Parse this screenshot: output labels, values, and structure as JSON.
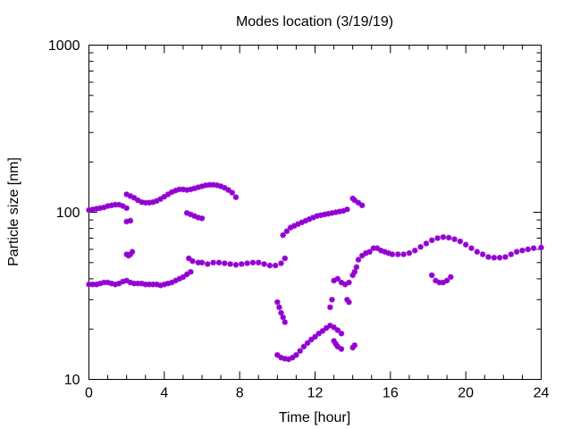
{
  "chart_data": {
    "type": "scatter",
    "title": "Modes location (3/19/19)",
    "xlabel": "Time [hour]",
    "ylabel": "Particle size [nm]",
    "xlim": [
      0,
      24
    ],
    "ylim": [
      10,
      1000
    ],
    "yscale": "log",
    "x_ticks": [
      0,
      4,
      8,
      12,
      16,
      20,
      24
    ],
    "x_tick_labels": [
      "0",
      "4",
      "8",
      "12",
      "16",
      "20",
      "24"
    ],
    "y_ticks": [
      10,
      100,
      1000
    ],
    "y_tick_labels": [
      "10",
      "100",
      "1000"
    ],
    "grid": false,
    "legend": false,
    "marker_color": "#9400d3",
    "series": [
      {
        "points": [
          [
            0.0,
            103
          ],
          [
            0.2,
            104
          ],
          [
            0.4,
            105
          ],
          [
            0.6,
            106
          ],
          [
            0.8,
            107
          ],
          [
            1.0,
            109
          ],
          [
            1.2,
            110
          ],
          [
            1.4,
            111
          ],
          [
            1.6,
            111
          ],
          [
            1.8,
            109
          ],
          [
            2.0,
            106
          ],
          [
            2.0,
            128
          ],
          [
            2.2,
            125
          ],
          [
            2.4,
            122
          ],
          [
            2.6,
            118
          ],
          [
            2.8,
            115
          ],
          [
            3.0,
            114
          ],
          [
            3.2,
            114
          ],
          [
            3.4,
            115
          ],
          [
            3.6,
            117
          ],
          [
            3.8,
            120
          ],
          [
            4.0,
            124
          ],
          [
            4.2,
            128
          ],
          [
            4.4,
            132
          ],
          [
            4.6,
            135
          ],
          [
            4.8,
            137
          ],
          [
            5.0,
            137
          ],
          [
            5.2,
            136
          ],
          [
            5.4,
            137
          ],
          [
            5.6,
            139
          ],
          [
            5.8,
            141
          ],
          [
            6.0,
            143
          ],
          [
            6.2,
            145
          ],
          [
            6.4,
            146
          ],
          [
            6.6,
            146
          ],
          [
            6.8,
            145
          ],
          [
            7.0,
            143
          ],
          [
            7.2,
            140
          ],
          [
            7.4,
            136
          ],
          [
            7.6,
            131
          ],
          [
            7.8,
            123
          ],
          [
            2.0,
            88
          ],
          [
            2.2,
            89
          ],
          [
            2.0,
            56
          ],
          [
            2.1,
            55
          ],
          [
            2.2,
            56
          ],
          [
            2.3,
            58
          ],
          [
            5.2,
            99
          ],
          [
            5.4,
            97
          ],
          [
            5.6,
            95
          ],
          [
            5.8,
            93
          ],
          [
            6.0,
            92
          ],
          [
            0.0,
            37
          ],
          [
            0.2,
            37
          ],
          [
            0.4,
            37
          ],
          [
            0.6,
            37.5
          ],
          [
            0.8,
            38
          ],
          [
            1.0,
            38
          ],
          [
            1.2,
            37.5
          ],
          [
            1.4,
            37
          ],
          [
            1.6,
            37.5
          ],
          [
            1.8,
            38.5
          ],
          [
            2.0,
            39
          ],
          [
            2.2,
            38
          ],
          [
            2.4,
            37.5
          ],
          [
            2.6,
            37.5
          ],
          [
            2.8,
            37.5
          ],
          [
            3.0,
            37
          ],
          [
            3.2,
            37
          ],
          [
            3.4,
            37
          ],
          [
            3.6,
            37
          ],
          [
            3.8,
            36.5
          ],
          [
            4.0,
            37
          ],
          [
            4.2,
            37.5
          ],
          [
            4.4,
            38
          ],
          [
            4.6,
            39
          ],
          [
            4.8,
            40
          ],
          [
            5.0,
            41
          ],
          [
            5.2,
            42.5
          ],
          [
            5.4,
            44
          ],
          [
            5.3,
            53
          ],
          [
            5.5,
            51
          ],
          [
            5.8,
            50
          ],
          [
            6.0,
            50
          ],
          [
            6.3,
            49
          ],
          [
            6.6,
            50
          ],
          [
            6.9,
            50
          ],
          [
            7.2,
            49.5
          ],
          [
            7.5,
            49
          ],
          [
            7.8,
            48.5
          ],
          [
            8.1,
            49
          ],
          [
            8.4,
            49.5
          ],
          [
            8.7,
            50
          ],
          [
            9.0,
            50
          ],
          [
            9.3,
            49
          ],
          [
            9.6,
            48
          ],
          [
            9.9,
            48
          ],
          [
            10.2,
            49.5
          ],
          [
            10.4,
            53
          ],
          [
            10.0,
            29
          ],
          [
            10.1,
            27
          ],
          [
            10.2,
            25
          ],
          [
            10.3,
            23.5
          ],
          [
            10.4,
            22
          ],
          [
            10.0,
            14
          ],
          [
            10.2,
            13.5
          ],
          [
            10.4,
            13.3
          ],
          [
            10.6,
            13.2
          ],
          [
            10.8,
            13.5
          ],
          [
            11.0,
            14
          ],
          [
            11.2,
            14.8
          ],
          [
            11.4,
            15.7
          ],
          [
            11.6,
            16.5
          ],
          [
            11.8,
            17.3
          ],
          [
            12.0,
            18
          ],
          [
            12.2,
            18.8
          ],
          [
            12.4,
            19.5
          ],
          [
            12.6,
            20.3
          ],
          [
            12.8,
            21
          ],
          [
            13.0,
            20.5
          ],
          [
            13.2,
            19.7
          ],
          [
            13.4,
            18.8
          ],
          [
            13.0,
            17
          ],
          [
            13.1,
            16.3
          ],
          [
            13.2,
            15.7
          ],
          [
            13.4,
            15.2
          ],
          [
            14.0,
            15.5
          ],
          [
            14.1,
            16
          ],
          [
            12.8,
            27
          ],
          [
            12.9,
            30
          ],
          [
            13.0,
            39
          ],
          [
            13.2,
            40
          ],
          [
            13.4,
            38
          ],
          [
            13.6,
            37
          ],
          [
            13.8,
            38
          ],
          [
            13.7,
            30
          ],
          [
            13.8,
            29
          ],
          [
            14.0,
            42
          ],
          [
            14.1,
            44
          ],
          [
            14.2,
            47
          ],
          [
            14.0,
            121
          ],
          [
            14.1,
            118
          ],
          [
            14.3,
            114
          ],
          [
            14.5,
            110
          ],
          [
            10.3,
            73
          ],
          [
            10.5,
            77
          ],
          [
            10.7,
            81
          ],
          [
            10.9,
            83
          ],
          [
            11.1,
            85
          ],
          [
            11.3,
            87
          ],
          [
            11.5,
            89
          ],
          [
            11.7,
            91
          ],
          [
            11.9,
            93
          ],
          [
            12.1,
            95
          ],
          [
            12.3,
            96
          ],
          [
            12.5,
            97
          ],
          [
            12.7,
            98
          ],
          [
            12.9,
            99
          ],
          [
            13.1,
            100
          ],
          [
            13.3,
            101
          ],
          [
            13.5,
            102
          ],
          [
            13.7,
            104
          ],
          [
            14.3,
            52
          ],
          [
            14.5,
            55
          ],
          [
            14.7,
            57
          ],
          [
            14.9,
            58
          ],
          [
            15.1,
            61
          ],
          [
            15.3,
            61
          ],
          [
            15.5,
            59
          ],
          [
            15.7,
            58
          ],
          [
            15.9,
            57
          ],
          [
            16.1,
            56
          ],
          [
            16.4,
            56
          ],
          [
            16.7,
            56
          ],
          [
            17.0,
            57
          ],
          [
            17.3,
            59
          ],
          [
            17.6,
            62
          ],
          [
            17.9,
            65
          ],
          [
            18.2,
            68
          ],
          [
            18.5,
            70
          ],
          [
            18.8,
            71
          ],
          [
            19.1,
            70.5
          ],
          [
            19.4,
            69
          ],
          [
            19.7,
            67
          ],
          [
            20.0,
            64
          ],
          [
            20.3,
            61
          ],
          [
            20.6,
            58
          ],
          [
            20.9,
            56
          ],
          [
            21.2,
            54
          ],
          [
            21.5,
            53.5
          ],
          [
            21.8,
            53.5
          ],
          [
            22.1,
            54
          ],
          [
            22.4,
            56
          ],
          [
            22.7,
            58
          ],
          [
            23.0,
            59
          ],
          [
            23.3,
            60
          ],
          [
            23.6,
            61
          ],
          [
            24.0,
            61.5
          ],
          [
            18.2,
            42
          ],
          [
            18.4,
            39
          ],
          [
            18.6,
            38
          ],
          [
            18.8,
            38
          ],
          [
            19.0,
            39
          ],
          [
            19.2,
            41
          ]
        ]
      }
    ]
  }
}
